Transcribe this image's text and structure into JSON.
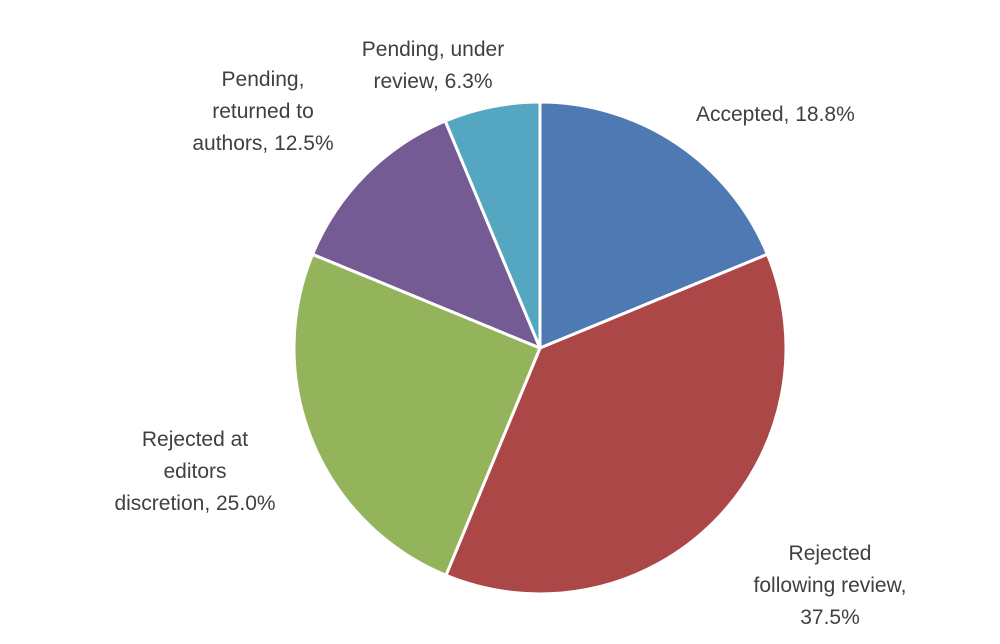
{
  "chart_data": {
    "type": "pie",
    "title": "",
    "start_angle_deg": 0,
    "direction": "clockwise",
    "slices": [
      {
        "name": "Accepted",
        "value": 18.8,
        "label_lines": [
          "Accepted, 18.8%"
        ],
        "color": "#4F79B2"
      },
      {
        "name": "Rejected following review",
        "value": 37.5,
        "label_lines": [
          "Rejected",
          "following review,",
          "37.5%"
        ],
        "color": "#AC4747"
      },
      {
        "name": "Rejected at editors discretion",
        "value": 25.0,
        "label_lines": [
          "Rejected at",
          "editors",
          "discretion, 25.0%"
        ],
        "color": "#94B45C"
      },
      {
        "name": "Pending, returned to authors",
        "value": 12.5,
        "label_lines": [
          "Pending,",
          "returned to",
          "authors, 12.5%"
        ],
        "color": "#745B94"
      },
      {
        "name": "Pending, under review",
        "value": 6.3,
        "label_lines": [
          "Pending, under",
          "review, 6.3%"
        ],
        "color": "#55A6C0"
      }
    ]
  }
}
